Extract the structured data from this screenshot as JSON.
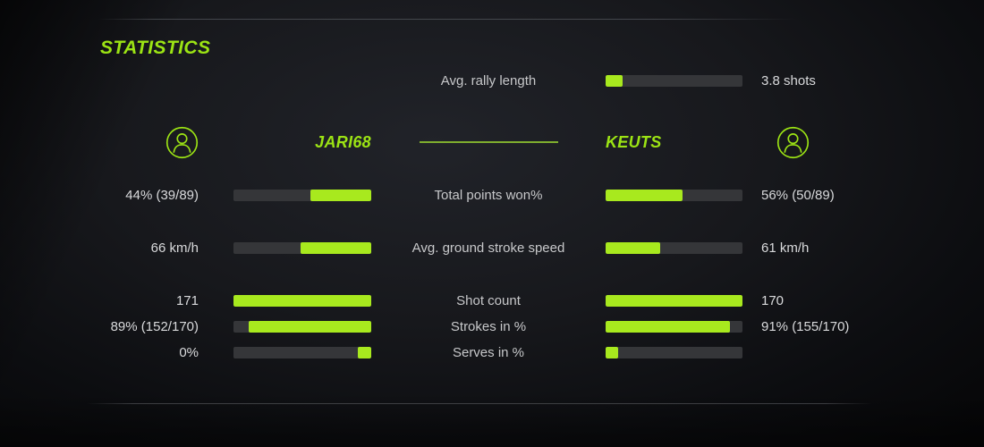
{
  "title": "STATISTICS",
  "colors": {
    "accent_green": "#9ce414",
    "bar_green": "#a8e91e",
    "bar_track": "#353639",
    "center_divider_green": "#7fae2e",
    "label_text": "#c7c8ca",
    "value_text": "#d9dadc"
  },
  "rally": {
    "label": "Avg. rally length",
    "value": "3.8 shots",
    "fill_pct": 12.5
  },
  "players": {
    "left": {
      "name": "JARI68",
      "avatar_icon": "user-circle-icon"
    },
    "right": {
      "name": "KEUTS",
      "avatar_icon": "user-circle-icon"
    }
  },
  "stats": {
    "rows": [
      {
        "label": "Total points won%",
        "left_value": "44% (39/89)",
        "left_fill_pct": 44,
        "right_fill_pct": 56,
        "right_value": "56% (50/89)"
      },
      {
        "label": "Avg. ground stroke speed",
        "left_value": "66 km/h",
        "left_fill_pct": 51,
        "right_fill_pct": 40,
        "right_value": "61 km/h"
      },
      {
        "label": "Shot count",
        "left_value": "171",
        "left_fill_pct": 100,
        "right_fill_pct": 100,
        "right_value": "170"
      },
      {
        "label": "Strokes in %",
        "left_value": "89% (152/170)",
        "left_fill_pct": 89,
        "right_fill_pct": 91,
        "right_value": "91% (155/170)"
      },
      {
        "label": "Serves in %",
        "left_value": "0%",
        "left_fill_pct": 10,
        "right_fill_pct": 9,
        "right_value": ""
      }
    ]
  }
}
